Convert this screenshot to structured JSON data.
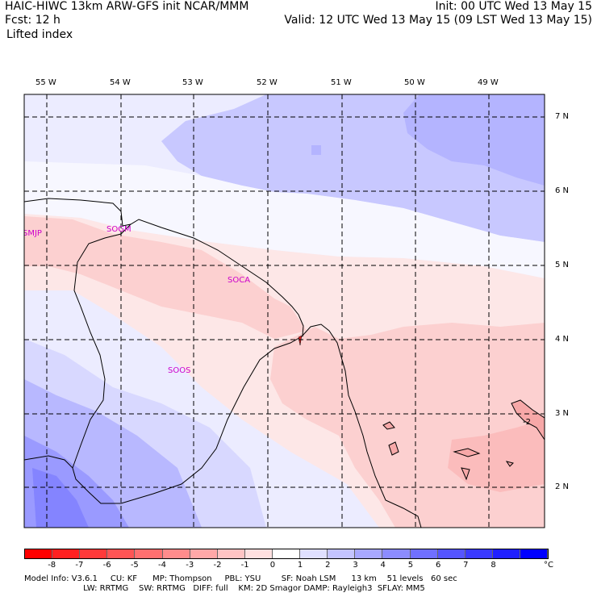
{
  "header": {
    "left_line1": "HAIC-HIWC 13km ARW-GFS init   NCAR/MMM",
    "left_line2": "Fcst:   12 h",
    "left_line3": "Lifted index",
    "init": "Init: 00 UTC Wed 13 May 15",
    "valid": "Valid: 12 UTC Wed 13 May 15 (09 LST Wed 13 May 15)"
  },
  "map": {
    "lon_labels": [
      "55 W",
      "54 W",
      "53 W",
      "52 W",
      "51 W",
      "50 W",
      "49 W"
    ],
    "lat_labels": [
      "7 N",
      "6 N",
      "5 N",
      "4 N",
      "3 N",
      "2 N"
    ],
    "stations": [
      "SMJP",
      "SOGM",
      "SOCA",
      "SOOS"
    ],
    "contour_label": "-2"
  },
  "colorbar": {
    "ticks": [
      "-8",
      "-7",
      "-6",
      "-5",
      "-4",
      "-3",
      "-2",
      "-1",
      "0",
      "1",
      "2",
      "3",
      "4",
      "5",
      "6",
      "7",
      "8"
    ],
    "unit": "°C",
    "colors": [
      "#ff0000",
      "#ff2020",
      "#ff3a3a",
      "#ff5555",
      "#ff7070",
      "#ff8c8c",
      "#ffa8a8",
      "#ffc4c4",
      "#ffe0e0",
      "#ffffff",
      "#e0e0ff",
      "#c4c4ff",
      "#a8a8ff",
      "#8c8cff",
      "#7070ff",
      "#5555ff",
      "#3a3aff",
      "#2020ff",
      "#0000ff"
    ]
  },
  "footer": {
    "line1": "Model Info: V3.6.1     CU: KF      MP: Thompson     PBL: YSU        SF: Noah LSM      13 km    51 levels   60 sec",
    "line2": "                       LW: RRTMG    SW: RRTMG   DIFF: full    KM: 2D Smagor DAMP: Rayleigh3  SFLAY: MM5"
  }
}
